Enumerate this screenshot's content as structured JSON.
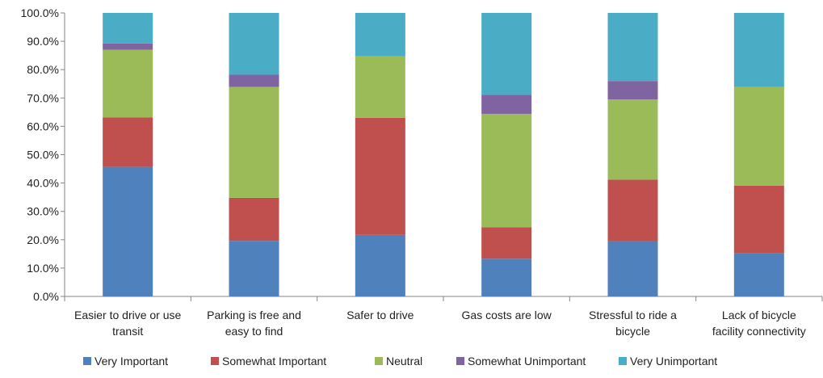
{
  "chart_data": {
    "type": "bar",
    "stacked": "percent",
    "title": "",
    "xlabel": "",
    "ylabel": "",
    "ylim": [
      0,
      100
    ],
    "yticks": [
      "0.0%",
      "10.0%",
      "20.0%",
      "30.0%",
      "40.0%",
      "50.0%",
      "60.0%",
      "70.0%",
      "80.0%",
      "90.0%",
      "100.0%"
    ],
    "grid": false,
    "legend_position": "bottom",
    "categories": [
      [
        "Easier to drive or use",
        "transit"
      ],
      [
        "Parking is free and",
        "easy to find"
      ],
      [
        "Safer to drive"
      ],
      [
        "Gas costs are low"
      ],
      [
        "Stressful to ride a",
        "bicycle"
      ],
      [
        "Lack of bicycle",
        "facility connectivity"
      ]
    ],
    "series": [
      {
        "name": "Very Important",
        "color": "#4F81BD",
        "values": [
          45.7,
          19.6,
          21.7,
          13.3,
          19.5,
          15.2
        ]
      },
      {
        "name": "Somewhat Important",
        "color": "#C0504D",
        "values": [
          17.4,
          15.2,
          41.3,
          11.1,
          21.7,
          23.9
        ]
      },
      {
        "name": "Neutral",
        "color": "#9BBB59",
        "values": [
          23.9,
          39.1,
          21.7,
          40.0,
          28.3,
          34.8
        ]
      },
      {
        "name": "Somewhat Unimportant",
        "color": "#8064A2",
        "values": [
          2.2,
          4.3,
          0.0,
          6.7,
          6.5,
          0.0
        ]
      },
      {
        "name": "Very Unimportant",
        "color": "#4BACC6",
        "values": [
          10.8,
          21.8,
          15.3,
          28.9,
          24.0,
          26.1
        ]
      }
    ]
  }
}
